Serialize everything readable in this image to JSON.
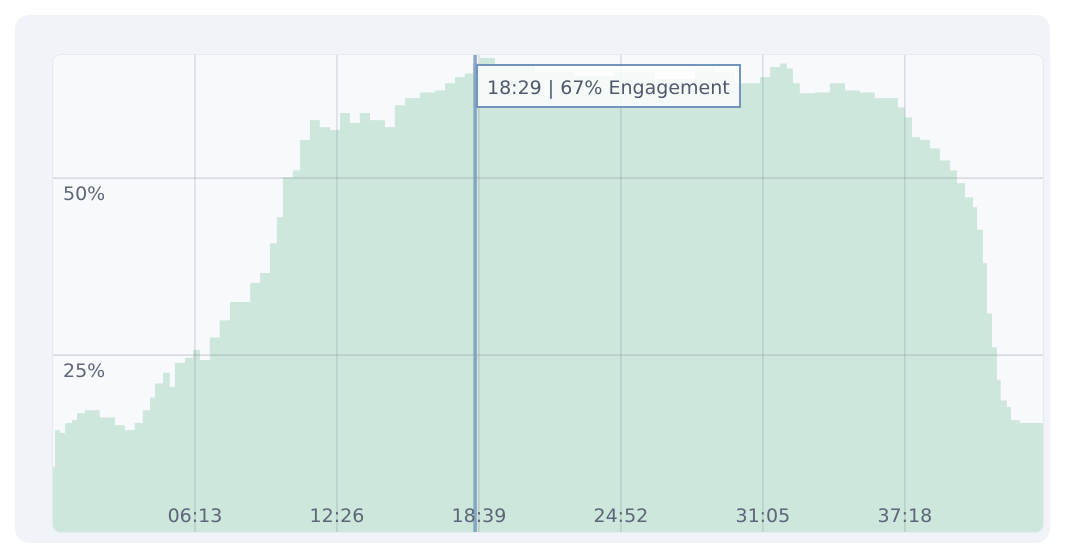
{
  "chart_data": {
    "type": "area",
    "title": "",
    "xlabel": "",
    "ylabel": "",
    "step": true,
    "xlim": [
      "00:00",
      "43:21"
    ],
    "ylim": [
      0,
      67.4
    ],
    "grid": true,
    "x_ticks": [
      "06:13",
      "12:26",
      "18:39",
      "24:52",
      "31:05",
      "37:18"
    ],
    "y_ticks": [
      {
        "value": 25,
        "label": "25%"
      },
      {
        "value": 50,
        "label": "50%"
      }
    ],
    "colors": {
      "fill": "#cde7dc",
      "cursor": "#7f9fbd",
      "grid": "#d3d8de",
      "background": "#f8f9fc",
      "card": "#f0f4f9"
    },
    "series": [
      {
        "points": [
          [
            "00:00",
            9.2
          ],
          [
            "00:05",
            14.4
          ],
          [
            "00:18",
            14
          ],
          [
            "00:32",
            15.4
          ],
          [
            "00:50",
            15.8
          ],
          [
            "01:03",
            16.8
          ],
          [
            "01:24",
            17.2
          ],
          [
            "02:03",
            16.2
          ],
          [
            "02:30",
            16.2
          ],
          [
            "02:43",
            15.1
          ],
          [
            "03:09",
            14.4
          ],
          [
            "03:35",
            15.4
          ],
          [
            "03:56",
            17.2
          ],
          [
            "04:15",
            19
          ],
          [
            "04:28",
            21
          ],
          [
            "04:49",
            22.5
          ],
          [
            "05:07",
            20.5
          ],
          [
            "05:20",
            23.9
          ],
          [
            "05:47",
            24.6
          ],
          [
            "06:08",
            25.7
          ],
          [
            "06:26",
            24.3
          ],
          [
            "06:52",
            27.5
          ],
          [
            "07:18",
            29.9
          ],
          [
            "07:45",
            32.5
          ],
          [
            "08:24",
            32.5
          ],
          [
            "08:38",
            35.2
          ],
          [
            "09:04",
            36.6
          ],
          [
            "09:30",
            40.8
          ],
          [
            "09:48",
            44.5
          ],
          [
            "10:04",
            50.1
          ],
          [
            "10:30",
            51.1
          ],
          [
            "10:49",
            55.4
          ],
          [
            "11:15",
            58.2
          ],
          [
            "11:41",
            57.2
          ],
          [
            "12:08",
            56.8
          ],
          [
            "12:34",
            59.2
          ],
          [
            "13:00",
            57.8
          ],
          [
            "13:26",
            59.2
          ],
          [
            "13:53",
            58.2
          ],
          [
            "14:32",
            57.2
          ],
          [
            "14:58",
            60.3
          ],
          [
            "15:25",
            61.3
          ],
          [
            "16:04",
            62.1
          ],
          [
            "16:44",
            62.4
          ],
          [
            "17:10",
            63.4
          ],
          [
            "17:36",
            64.3
          ],
          [
            "18:02",
            64.8
          ],
          [
            "18:23",
            66.2
          ],
          [
            "18:42",
            67
          ],
          [
            "19:21",
            66
          ],
          [
            "21:06",
            65
          ],
          [
            "22:51",
            64.5
          ],
          [
            "24:36",
            65
          ],
          [
            "26:21",
            64
          ],
          [
            "28:07",
            65.5
          ],
          [
            "28:59",
            65
          ],
          [
            "29:52",
            63.4
          ],
          [
            "30:18",
            63.4
          ],
          [
            "30:57",
            64.3
          ],
          [
            "31:24",
            65.7
          ],
          [
            "31:50",
            66.2
          ],
          [
            "32:08",
            65.5
          ],
          [
            "32:24",
            63.4
          ],
          [
            "32:42",
            62
          ],
          [
            "33:22",
            62.1
          ],
          [
            "34:01",
            63.4
          ],
          [
            "34:41",
            62.4
          ],
          [
            "35:20",
            62.1
          ],
          [
            "35:59",
            61.3
          ],
          [
            "36:39",
            61.3
          ],
          [
            "37:00",
            60
          ],
          [
            "37:18",
            58.6
          ],
          [
            "37:37",
            55.8
          ],
          [
            "37:58",
            55.4
          ],
          [
            "38:24",
            54.2
          ],
          [
            "38:50",
            52.5
          ],
          [
            "39:17",
            51.1
          ],
          [
            "39:35",
            49.3
          ],
          [
            "39:56",
            47.3
          ],
          [
            "40:17",
            45.9
          ],
          [
            "40:28",
            42.7
          ],
          [
            "40:43",
            38
          ],
          [
            "40:54",
            30.9
          ],
          [
            "41:07",
            26.1
          ],
          [
            "41:20",
            21.5
          ],
          [
            "41:30",
            18.6
          ],
          [
            "41:46",
            17.7
          ],
          [
            "41:57",
            15.8
          ],
          [
            "42:20",
            15.4
          ],
          [
            "42:47",
            15.4
          ],
          [
            "43:05",
            15.4
          ],
          [
            "43:21",
            11.6
          ]
        ]
      }
    ],
    "cursor": {
      "time": "18:29",
      "value": 67
    },
    "tooltip": {
      "text": "18:29 | 67% Engagement"
    }
  }
}
